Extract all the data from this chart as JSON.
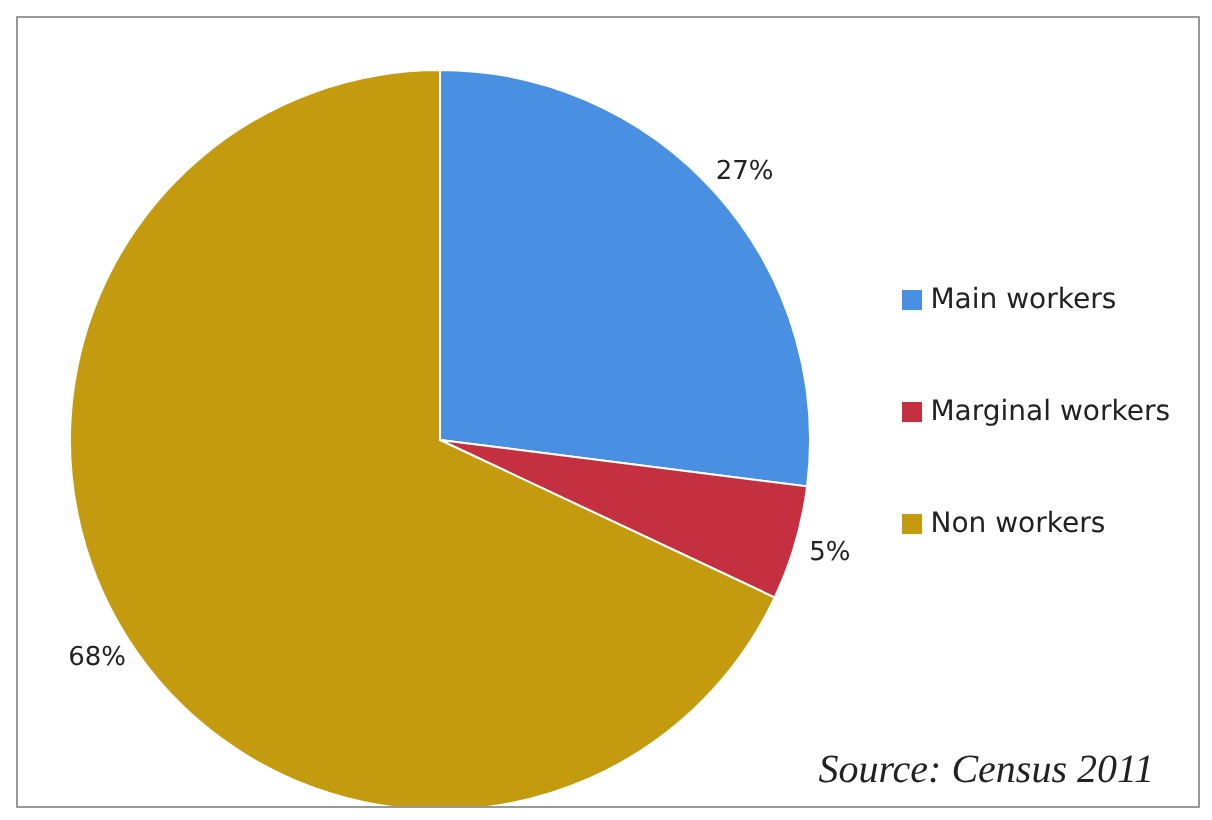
{
  "chart_data": {
    "type": "pie",
    "categories": [
      "Main workers",
      "Marginal workers",
      "Non workers"
    ],
    "values": [
      27,
      5,
      68
    ],
    "value_labels": [
      "27%",
      "5%",
      "68%"
    ],
    "colors": [
      "#4a90e2",
      "#c4303f",
      "#c49a0f"
    ],
    "legend": "right",
    "annotations": [
      "Source: Census 2011"
    ]
  }
}
